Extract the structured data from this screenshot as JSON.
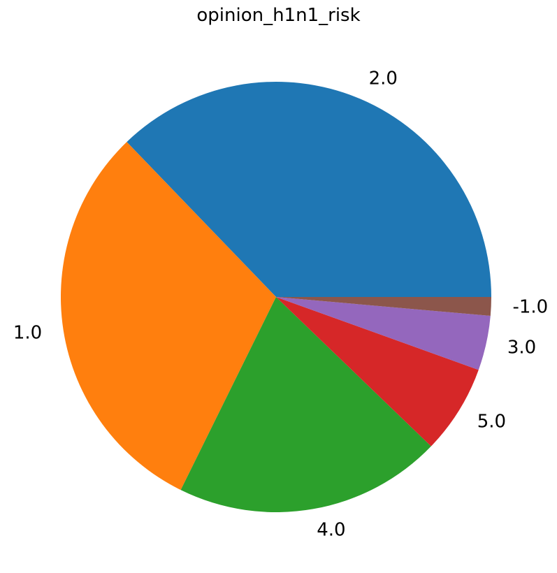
{
  "chart_data": {
    "type": "pie",
    "title": "opinion_h1n1_risk",
    "categories": [
      "2.0",
      "1.0",
      "4.0",
      "5.0",
      "3.0",
      "-1.0"
    ],
    "values": [
      37.2,
      30.5,
      20.1,
      6.7,
      4.1,
      1.4
    ],
    "colors": [
      "#1f77b4",
      "#ff7f0e",
      "#2ca02c",
      "#d62728",
      "#9467bd",
      "#8c564b"
    ],
    "start_angle_deg": 0,
    "direction": "counterclockwise",
    "legend": "none"
  }
}
